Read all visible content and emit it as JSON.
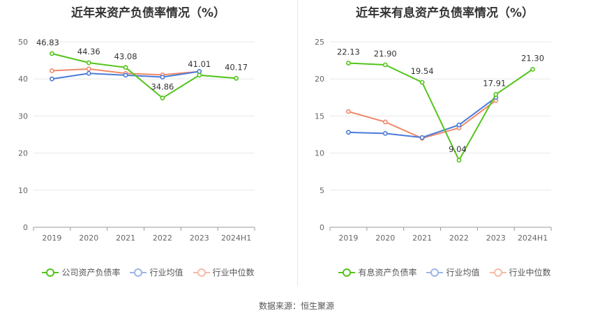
{
  "source": "数据来源：恒生聚源",
  "chart_data": [
    {
      "type": "line",
      "title": "近年来资产负债率情况（%）",
      "categories": [
        "2019",
        "2020",
        "2021",
        "2022",
        "2023",
        "2024H1"
      ],
      "ylim": [
        0,
        50
      ],
      "yticks": [
        "0",
        "10",
        "20",
        "30",
        "40",
        "50"
      ],
      "grid": true,
      "legend_position": "bottom-center",
      "series": [
        {
          "name": "公司资产负债率",
          "color": "#52c41a",
          "values": [
            46.83,
            44.36,
            43.08,
            34.86,
            41.01,
            40.17
          ],
          "labels": [
            "46.83",
            "44.36",
            "43.08",
            "34.86",
            "41.01",
            "40.17"
          ]
        },
        {
          "name": "行业均值",
          "color": "#4a7bd8",
          "values": [
            40.0,
            41.5,
            41.0,
            40.5,
            42.0,
            null
          ]
        },
        {
          "name": "行业中位数",
          "color": "#f0886a",
          "values": [
            42.2,
            42.7,
            41.5,
            41.1,
            42.0,
            null
          ]
        }
      ]
    },
    {
      "type": "line",
      "title": "近年来有息资产负债率情况（%）",
      "categories": [
        "2019",
        "2020",
        "2021",
        "2022",
        "2023",
        "2024H1"
      ],
      "ylim": [
        0,
        25
      ],
      "yticks": [
        "0",
        "5",
        "10",
        "15",
        "20",
        "25"
      ],
      "grid": true,
      "legend_position": "bottom-center",
      "series": [
        {
          "name": "有息资产负债率",
          "color": "#52c41a",
          "values": [
            22.13,
            21.9,
            19.54,
            9.04,
            17.91,
            21.3
          ],
          "labels": [
            "22.13",
            "21.90",
            "19.54",
            "9.04",
            "17.91",
            "21.30"
          ]
        },
        {
          "name": "行业均值",
          "color": "#4a7bd8",
          "values": [
            12.8,
            12.65,
            12.1,
            13.8,
            17.5,
            null
          ]
        },
        {
          "name": "行业中位数",
          "color": "#f0886a",
          "values": [
            15.6,
            14.2,
            12.0,
            13.4,
            17.1,
            null
          ]
        }
      ]
    }
  ]
}
